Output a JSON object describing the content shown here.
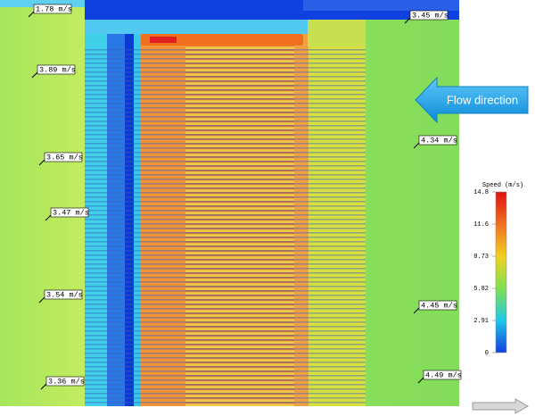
{
  "probes": [
    {
      "label": "1.78 m/s"
    },
    {
      "label": "3.45 m/s"
    },
    {
      "label": "3.89 m/s"
    },
    {
      "label": "4.34 m/s"
    },
    {
      "label": "3.65 m/s"
    },
    {
      "label": "3.47 m/s"
    },
    {
      "label": "3.54 m/s"
    },
    {
      "label": "4.45 m/s"
    },
    {
      "label": "3.36 m/s"
    },
    {
      "label": "4.49 m/s"
    }
  ],
  "flow_direction": "Flow direction",
  "colorbar": {
    "title": "Speed (m/s)",
    "ticks": [
      "14.8",
      "11.6",
      "8.73",
      "5.82",
      "2.91",
      "0"
    ]
  }
}
